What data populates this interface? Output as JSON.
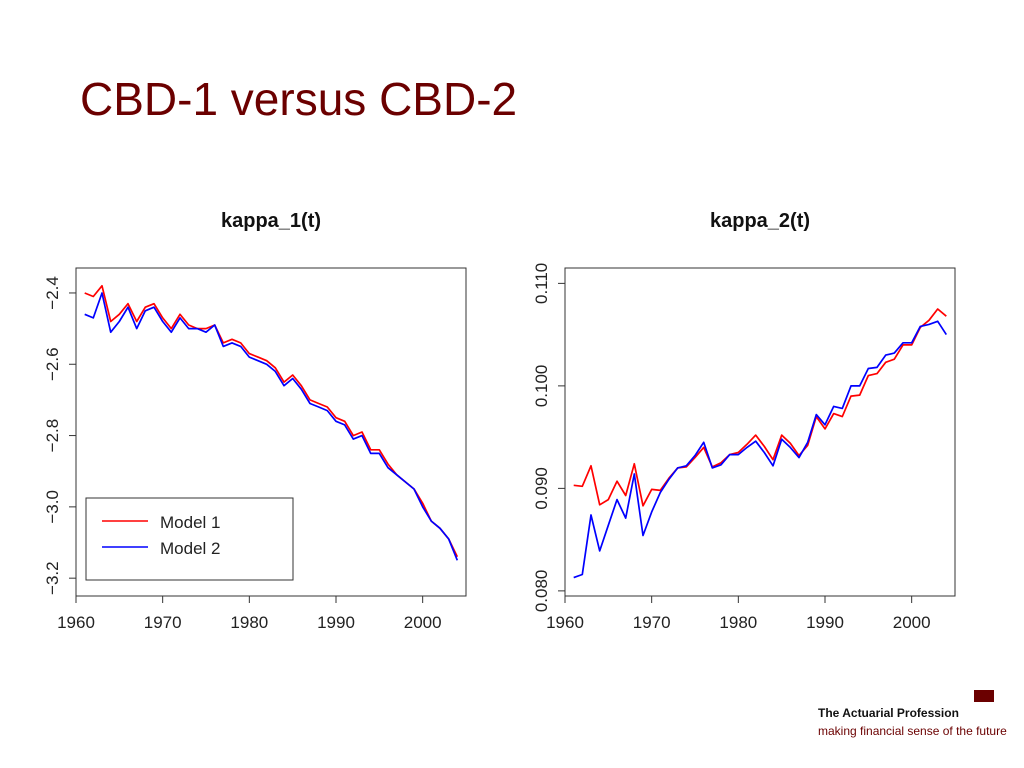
{
  "slide": {
    "title": "CBD-1 versus CBD-2"
  },
  "footer": {
    "org": "The Actuarial Profession",
    "tagline": "making financial sense of the future",
    "logo_color": "#6b0000"
  },
  "chart_data": [
    {
      "type": "line",
      "title": "kappa_1(t)",
      "xlabel": "",
      "ylabel": "",
      "xlim": [
        1960,
        2005
      ],
      "ylim": [
        -3.25,
        -2.33
      ],
      "x_ticks": [
        1960,
        1970,
        1980,
        1990,
        2000
      ],
      "y_ticks": [
        -2.4,
        -2.6,
        -2.8,
        -3.0,
        -3.2
      ],
      "y_tick_labels": [
        "−2.4",
        "−2.6",
        "−2.8",
        "−3.0",
        "−3.2"
      ],
      "legend": {
        "position": "bottom-left",
        "entries": [
          "Model 1",
          "Model 2"
        ]
      },
      "grid": false,
      "x": [
        1961,
        1962,
        1963,
        1964,
        1965,
        1966,
        1967,
        1968,
        1969,
        1970,
        1971,
        1972,
        1973,
        1974,
        1975,
        1976,
        1977,
        1978,
        1979,
        1980,
        1981,
        1982,
        1983,
        1984,
        1985,
        1986,
        1987,
        1988,
        1989,
        1990,
        1991,
        1992,
        1993,
        1994,
        1995,
        1996,
        1997,
        1998,
        1999,
        2000,
        2001,
        2002,
        2003,
        2004
      ],
      "series": [
        {
          "name": "Model 1",
          "color": "#ff0000",
          "values": [
            -2.4,
            -2.41,
            -2.38,
            -2.48,
            -2.46,
            -2.43,
            -2.48,
            -2.44,
            -2.43,
            -2.47,
            -2.5,
            -2.46,
            -2.49,
            -2.5,
            -2.5,
            -2.49,
            -2.54,
            -2.53,
            -2.54,
            -2.57,
            -2.58,
            -2.59,
            -2.61,
            -2.65,
            -2.63,
            -2.66,
            -2.7,
            -2.71,
            -2.72,
            -2.75,
            -2.76,
            -2.8,
            -2.79,
            -2.84,
            -2.84,
            -2.88,
            -2.91,
            -2.93,
            -2.95,
            -2.99,
            -3.04,
            -3.06,
            -3.09,
            -3.14
          ]
        },
        {
          "name": "Model 2",
          "color": "#0000ff",
          "values": [
            -2.46,
            -2.47,
            -2.4,
            -2.51,
            -2.48,
            -2.44,
            -2.5,
            -2.45,
            -2.44,
            -2.48,
            -2.51,
            -2.47,
            -2.5,
            -2.5,
            -2.51,
            -2.49,
            -2.55,
            -2.54,
            -2.55,
            -2.58,
            -2.59,
            -2.6,
            -2.62,
            -2.66,
            -2.64,
            -2.67,
            -2.71,
            -2.72,
            -2.73,
            -2.76,
            -2.77,
            -2.81,
            -2.8,
            -2.85,
            -2.85,
            -2.89,
            -2.91,
            -2.93,
            -2.95,
            -3.0,
            -3.04,
            -3.06,
            -3.09,
            -3.15
          ]
        }
      ]
    },
    {
      "type": "line",
      "title": "kappa_2(t)",
      "xlabel": "",
      "ylabel": "",
      "xlim": [
        1960,
        2005
      ],
      "ylim": [
        0.0795,
        0.1115
      ],
      "x_ticks": [
        1960,
        1970,
        1980,
        1990,
        2000
      ],
      "y_ticks": [
        0.08,
        0.09,
        0.1,
        0.11
      ],
      "y_tick_labels": [
        "0.080",
        "0.090",
        "0.100",
        "0.110"
      ],
      "grid": false,
      "x": [
        1961,
        1962,
        1963,
        1964,
        1965,
        1966,
        1967,
        1968,
        1969,
        1970,
        1971,
        1972,
        1973,
        1974,
        1975,
        1976,
        1977,
        1978,
        1979,
        1980,
        1981,
        1982,
        1983,
        1984,
        1985,
        1986,
        1987,
        1988,
        1989,
        1990,
        1991,
        1992,
        1993,
        1994,
        1995,
        1996,
        1997,
        1998,
        1999,
        2000,
        2001,
        2002,
        2003,
        2004
      ],
      "series": [
        {
          "name": "Model 1",
          "color": "#ff0000",
          "values": [
            0.0903,
            0.0902,
            0.0922,
            0.0884,
            0.0889,
            0.0907,
            0.0893,
            0.0924,
            0.0883,
            0.0899,
            0.0898,
            0.091,
            0.092,
            0.0921,
            0.093,
            0.094,
            0.0921,
            0.0925,
            0.0933,
            0.0935,
            0.0943,
            0.0952,
            0.0941,
            0.0928,
            0.0952,
            0.0944,
            0.0932,
            0.0942,
            0.097,
            0.0958,
            0.0973,
            0.097,
            0.099,
            0.0991,
            0.101,
            0.1012,
            0.1023,
            0.1026,
            0.104,
            0.104,
            0.1057,
            0.1064,
            0.1075,
            0.1068
          ]
        },
        {
          "name": "Model 2",
          "color": "#0000ff",
          "values": [
            0.0813,
            0.0816,
            0.0874,
            0.0839,
            0.0864,
            0.0889,
            0.0871,
            0.0914,
            0.0854,
            0.0877,
            0.0896,
            0.0909,
            0.092,
            0.0922,
            0.0932,
            0.0945,
            0.092,
            0.0923,
            0.0933,
            0.0933,
            0.094,
            0.0946,
            0.0935,
            0.0922,
            0.0948,
            0.094,
            0.093,
            0.0945,
            0.0972,
            0.0962,
            0.098,
            0.0978,
            0.1,
            0.1,
            0.1017,
            0.1018,
            0.103,
            0.1032,
            0.1042,
            0.1042,
            0.1058,
            0.106,
            0.1063,
            0.105
          ]
        }
      ]
    }
  ]
}
